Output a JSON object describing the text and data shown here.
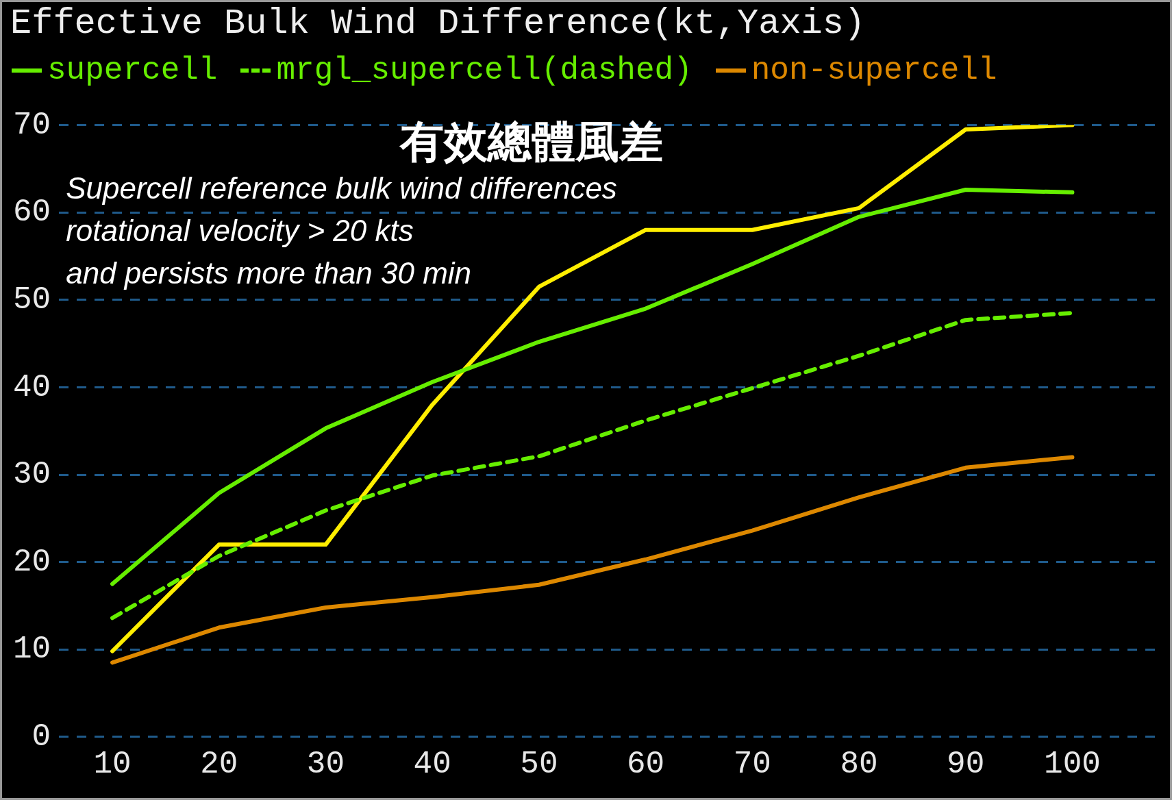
{
  "chart_data": {
    "type": "line",
    "title": "Effective Bulk Wind Difference(kt,Yaxis)",
    "x": [
      10,
      20,
      30,
      40,
      50,
      60,
      70,
      80,
      90,
      100
    ],
    "series": [
      {
        "name": "supercell",
        "color": "#66ee00",
        "values": [
          17.5,
          27.9,
          35.3,
          40.6,
          45.2,
          49,
          54.1,
          59.5,
          62.6,
          62.3
        ]
      },
      {
        "name": "mrgl_supercell(dashed)",
        "color": "#66ee00",
        "line_style": "dashed",
        "values": [
          13.6,
          20.7,
          25.9,
          29.9,
          32.1,
          36.2,
          39.9,
          43.6,
          47.7,
          48.5
        ]
      },
      {
        "name": "non-supercell",
        "color": "#dd8800",
        "values": [
          8.5,
          12.5,
          14.8,
          16,
          17.4,
          20.3,
          23.6,
          27.4,
          30.8,
          32
        ]
      },
      {
        "color": "#ffee00",
        "values": [
          9.8,
          22,
          22,
          38,
          51.5,
          58,
          58,
          60.5,
          69.5,
          70
        ]
      }
    ],
    "xlim": [
      5,
      108
    ],
    "xticks": [
      10,
      20,
      30,
      40,
      50,
      60,
      70,
      80,
      90,
      100
    ],
    "ylim": [
      0,
      70
    ],
    "yticks": [
      0,
      10,
      20,
      30,
      40,
      50,
      60,
      70
    ],
    "grid": "y",
    "legend": "top",
    "marker": "none",
    "line_style": "solid",
    "annotations": [
      "有效總體風差",
      "Supercell reference bulk wind differences",
      "rotational velocity > 20 kts",
      "and persists more than 30 min"
    ]
  }
}
